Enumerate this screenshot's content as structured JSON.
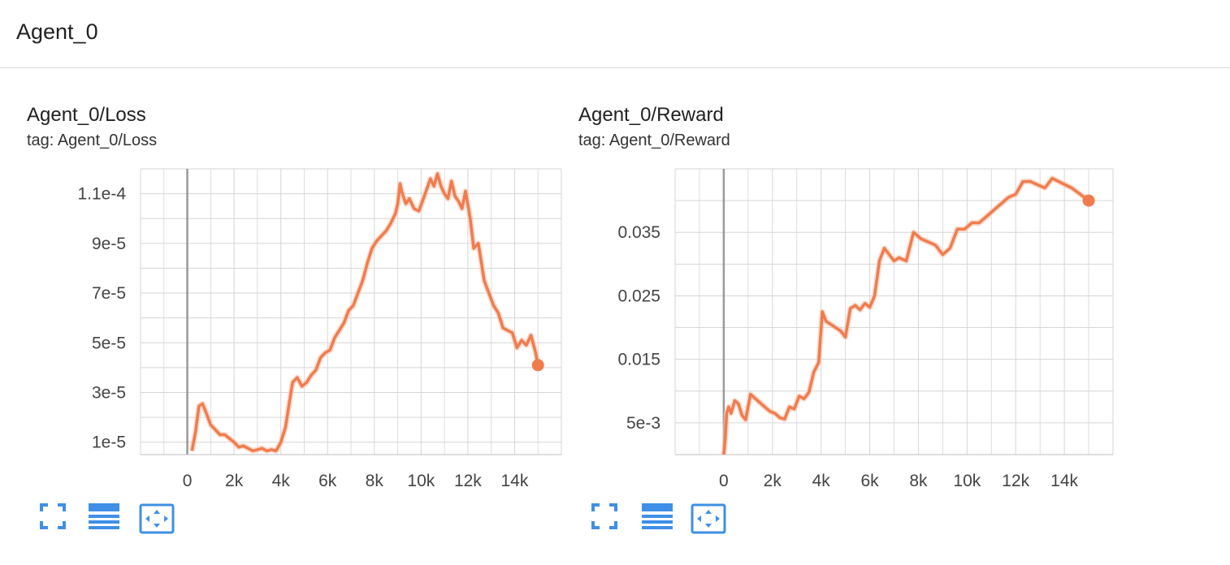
{
  "group": {
    "title": "Agent_0"
  },
  "colors": {
    "series": "#f07c4d",
    "series_light": "#f7c3ad",
    "grid": "#d6d6d6",
    "axis_zero": "#9a9a9a",
    "button": "#3f8fe6"
  },
  "charts": [
    {
      "title": "Agent_0/Loss",
      "tag": "tag: Agent_0/Loss"
    },
    {
      "title": "Agent_0/Reward",
      "tag": "tag: Agent_0/Reward"
    }
  ],
  "toolbar_icons": [
    "fullscreen-icon",
    "toggle-log-scale-icon",
    "fit-domain-icon"
  ],
  "chart_data": [
    {
      "type": "line",
      "title": "Agent_0/Loss",
      "xlabel": "",
      "ylabel": "",
      "xlim": [
        -2000,
        16000
      ],
      "ylim": [
        5e-06,
        0.00012
      ],
      "x_ticks": [
        0,
        2000,
        4000,
        6000,
        8000,
        10000,
        12000,
        14000
      ],
      "x_tick_labels": [
        "0",
        "2k",
        "4k",
        "6k",
        "8k",
        "10k",
        "12k",
        "14k"
      ],
      "y_ticks": [
        1e-05,
        3e-05,
        5e-05,
        7e-05,
        9e-05,
        0.00011
      ],
      "y_tick_labels": [
        "1e-5",
        "3e-5",
        "5e-5",
        "7e-5",
        "9e-5",
        "1.1e-4"
      ],
      "grid": true,
      "series": [
        {
          "x": [
            200,
            350,
            500,
            650,
            800,
            1000,
            1200,
            1400,
            1600,
            1800,
            2000,
            2200,
            2400,
            2600,
            2800,
            3000,
            3200,
            3400,
            3600,
            3800,
            4000,
            4200,
            4350,
            4500,
            4700,
            4900,
            5100,
            5300,
            5500,
            5700,
            5900,
            6100,
            6300,
            6500,
            6700,
            6900,
            7100,
            7300,
            7500,
            7700,
            7900,
            8100,
            8300,
            8500,
            8700,
            8900,
            9000,
            9100,
            9200,
            9350,
            9500,
            9700,
            9900,
            10100,
            10250,
            10400,
            10550,
            10700,
            10850,
            11000,
            11150,
            11300,
            11450,
            11600,
            11750,
            11900,
            12100,
            12250,
            12450,
            12700,
            12900,
            13100,
            13300,
            13500,
            13700,
            13900,
            14100,
            14300,
            14500,
            14700,
            14900,
            15000
          ],
          "y": [
            6.5e-06,
            1.4e-05,
            2.45e-05,
            2.55e-05,
            2.2e-05,
            1.7e-05,
            1.5e-05,
            1.3e-05,
            1.3e-05,
            1.15e-05,
            1e-05,
            8e-06,
            8.5e-06,
            7.5e-06,
            6.5e-06,
            7e-06,
            7.5e-06,
            6.5e-06,
            7e-06,
            6.5e-06,
            1e-05,
            1.6e-05,
            2.5e-05,
            3.4e-05,
            3.6e-05,
            3.25e-05,
            3.4e-05,
            3.7e-05,
            3.9e-05,
            4.4e-05,
            4.6e-05,
            4.7e-05,
            5.2e-05,
            5.5e-05,
            5.8e-05,
            6.3e-05,
            6.5e-05,
            7e-05,
            7.5e-05,
            8.2e-05,
            8.8e-05,
            9.1e-05,
            9.3e-05,
            9.5e-05,
            9.8e-05,
            0.000102,
            0.000106,
            0.000114,
            0.00011,
            0.000106,
            0.000108,
            0.000104,
            0.000103,
            0.000108,
            0.000112,
            0.000116,
            0.000113,
            0.000118,
            0.000113,
            0.00011,
            0.000108,
            0.000115,
            0.000109,
            0.000107,
            0.000104,
            0.000111,
            0.0001,
            8.8e-05,
            9e-05,
            7.5e-05,
            7e-05,
            6.5e-05,
            6.2e-05,
            5.6e-05,
            5.5e-05,
            5.4e-05,
            4.8e-05,
            5.1e-05,
            4.9e-05,
            5.3e-05,
            4.6e-05,
            4.1e-05
          ]
        }
      ]
    },
    {
      "type": "line",
      "title": "Agent_0/Reward",
      "xlabel": "",
      "ylabel": "",
      "xlim": [
        -2000,
        16000
      ],
      "ylim": [
        0.0,
        0.045
      ],
      "x_ticks": [
        0,
        2000,
        4000,
        6000,
        8000,
        10000,
        12000,
        14000
      ],
      "x_tick_labels": [
        "0",
        "2k",
        "4k",
        "6k",
        "8k",
        "10k",
        "12k",
        "14k"
      ],
      "y_ticks": [
        0.005,
        0.015,
        0.025,
        0.035
      ],
      "y_tick_labels": [
        "5e-3",
        "0.015",
        "0.025",
        "0.035"
      ],
      "grid": true,
      "series": [
        {
          "x": [
            0,
            50,
            120,
            200,
            300,
            450,
            600,
            750,
            900,
            1000,
            1100,
            1300,
            1600,
            1900,
            2100,
            2300,
            2500,
            2700,
            2900,
            3100,
            3300,
            3500,
            3700,
            3900,
            4050,
            4200,
            4400,
            4600,
            4800,
            5000,
            5200,
            5400,
            5600,
            5800,
            6000,
            6200,
            6400,
            6600,
            6800,
            7000,
            7200,
            7500,
            7800,
            8100,
            8400,
            8700,
            9000,
            9300,
            9600,
            9900,
            10200,
            10500,
            10800,
            11100,
            11400,
            11700,
            12000,
            12300,
            12600,
            12900,
            13200,
            13500,
            14300,
            15000
          ],
          "y": [
            0.0,
            0.002,
            0.0065,
            0.0075,
            0.0065,
            0.0085,
            0.008,
            0.0062,
            0.0055,
            0.0075,
            0.0095,
            0.0088,
            0.0078,
            0.0068,
            0.0065,
            0.0058,
            0.0056,
            0.0075,
            0.0072,
            0.0092,
            0.0088,
            0.0098,
            0.013,
            0.0145,
            0.0225,
            0.021,
            0.0205,
            0.02,
            0.0195,
            0.0185,
            0.023,
            0.0235,
            0.0228,
            0.0238,
            0.0232,
            0.025,
            0.0305,
            0.0325,
            0.0315,
            0.0305,
            0.031,
            0.0305,
            0.035,
            0.034,
            0.0335,
            0.033,
            0.0315,
            0.0325,
            0.0355,
            0.0355,
            0.0365,
            0.0365,
            0.0375,
            0.0385,
            0.0395,
            0.0405,
            0.041,
            0.043,
            0.043,
            0.0425,
            0.042,
            0.0435,
            0.042,
            0.04
          ]
        }
      ]
    }
  ]
}
